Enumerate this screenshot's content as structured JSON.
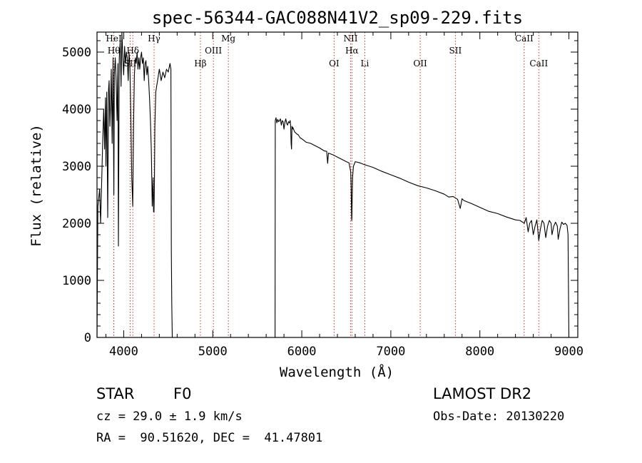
{
  "colors": {
    "spectrum": "#000000",
    "line_marker": "#c0392b",
    "axis": "#000000"
  },
  "chart_data": {
    "type": "line",
    "title": "spec-56344-GAC088N41V2_sp09-229.fits",
    "xlabel": "Wavelength (Å)",
    "ylabel": "Flux (relative)",
    "xlim": [
      3700,
      9100
    ],
    "ylim": [
      0,
      5350
    ],
    "xticks": [
      4000,
      5000,
      6000,
      7000,
      8000,
      9000
    ],
    "yticks": [
      0,
      1000,
      2000,
      3000,
      4000,
      5000
    ],
    "grid": false,
    "series": [
      {
        "x": [
          3700,
          3710,
          3730,
          3740,
          3755,
          3765,
          3775,
          3785,
          3795,
          3800,
          3810,
          3820,
          3830,
          3836,
          3845,
          3855,
          3860,
          3870,
          3880,
          3889,
          3895,
          3905,
          3915,
          3925,
          3935,
          3940,
          3950,
          3960,
          3970,
          3980,
          3990,
          4000,
          4010,
          4020,
          4030,
          4040,
          4050,
          4060,
          4070,
          4080,
          4090,
          4101,
          4110,
          4120,
          4130,
          4140,
          4150,
          4160,
          4170,
          4180,
          4190,
          4200,
          4210,
          4220,
          4230,
          4240,
          4250,
          4260,
          4270,
          4280,
          4290,
          4300,
          4310,
          4320,
          4330,
          4335,
          4340,
          4345,
          4350,
          4360,
          4370,
          4380,
          4390,
          4400,
          4420,
          4440,
          4460,
          4480,
          4500,
          4520,
          4530,
          4535,
          4540,
          4545,
          4550
        ],
        "y": [
          0,
          2300,
          2600,
          2000,
          2900,
          3500,
          4000,
          3300,
          4200,
          3000,
          4300,
          2100,
          4350,
          4500,
          3700,
          4200,
          4700,
          3400,
          4900,
          2500,
          4600,
          4900,
          4500,
          3800,
          4800,
          1600,
          4900,
          5200,
          4400,
          5350,
          4900,
          4600,
          5100,
          4800,
          5000,
          4900,
          4500,
          5000,
          4700,
          3900,
          2800,
          2300,
          3700,
          4600,
          4900,
          4800,
          5000,
          4700,
          4900,
          4700,
          4900,
          5000,
          4800,
          4900,
          4500,
          4800,
          4850,
          4600,
          4750,
          4500,
          4200,
          3800,
          3300,
          2300,
          2800,
          2200,
          2200,
          2700,
          3700,
          4300,
          4400,
          4500,
          4600,
          4700,
          4500,
          4650,
          4550,
          4700,
          4650,
          4800,
          4700,
          1500,
          600,
          0,
          0
        ]
      },
      {
        "x": [
          5690,
          5695,
          5698,
          5700,
          5702,
          5710,
          5720,
          5730,
          5740,
          5750,
          5760,
          5770,
          5780,
          5790,
          5800,
          5810,
          5820,
          5830,
          5840,
          5850,
          5860,
          5870,
          5875,
          5880,
          5885,
          5890,
          5895,
          5900,
          5910,
          5920,
          5940,
          5960,
          5980,
          6000,
          6050,
          6100,
          6150,
          6200,
          6250,
          6280,
          6290,
          6300,
          6350,
          6400,
          6450,
          6500,
          6530,
          6550,
          6555,
          6560,
          6563,
          6566,
          6570,
          6580,
          6600,
          6650,
          6700,
          6800,
          6900,
          7000,
          7100,
          7200,
          7300,
          7400,
          7500,
          7600,
          7650,
          7700,
          7750,
          7780,
          7800,
          7820,
          7850,
          7900,
          8000,
          8100,
          8200,
          8300,
          8400,
          8450,
          8500,
          8520,
          8542,
          8560,
          8580,
          8600,
          8620,
          8640,
          8650,
          8662,
          8680,
          8700,
          8720,
          8740,
          8760,
          8780,
          8800,
          8810,
          8830,
          8850,
          8870,
          8880,
          8900,
          8920,
          8940,
          8960,
          8980,
          8990,
          9000
        ],
        "y": [
          0,
          0,
          0,
          0,
          3800,
          3850,
          3760,
          3820,
          3780,
          3800,
          3830,
          3720,
          3800,
          3780,
          3650,
          3770,
          3830,
          3750,
          3720,
          3780,
          3760,
          3800,
          3700,
          3400,
          3300,
          3700,
          3650,
          3680,
          3640,
          3600,
          3570,
          3550,
          3500,
          3480,
          3420,
          3400,
          3360,
          3320,
          3270,
          3260,
          3050,
          3230,
          3200,
          3160,
          3120,
          3080,
          3060,
          2900,
          2600,
          2050,
          2100,
          2400,
          2800,
          3000,
          3080,
          3060,
          3030,
          2980,
          2910,
          2850,
          2790,
          2720,
          2660,
          2620,
          2570,
          2510,
          2460,
          2470,
          2420,
          2260,
          2430,
          2400,
          2380,
          2350,
          2280,
          2210,
          2170,
          2110,
          2060,
          2050,
          2000,
          2100,
          1850,
          2000,
          2050,
          1800,
          1950,
          2060,
          1900,
          1700,
          1900,
          2050,
          2000,
          1750,
          1950,
          2050,
          2000,
          1800,
          1950,
          2020,
          1950,
          1720,
          1900,
          2020,
          1980,
          2000,
          1960,
          1800,
          0
        ]
      }
    ],
    "line_markers": [
      {
        "wave": 3889,
        "label": "Hθ"
      },
      {
        "wave": 3889,
        "label": "HeI"
      },
      {
        "wave": 4072,
        "label": "SII"
      },
      {
        "wave": 4102,
        "label": "Hδ"
      },
      {
        "wave": 4341,
        "label": "Hγ"
      },
      {
        "wave": 4861,
        "label": "Hβ"
      },
      {
        "wave": 5007,
        "label": "OIII"
      },
      {
        "wave": 5175,
        "label": "Mg"
      },
      {
        "wave": 6363,
        "label": "OI"
      },
      {
        "wave": 6548,
        "label": "NII"
      },
      {
        "wave": 6563,
        "label": "Hα"
      },
      {
        "wave": 6708,
        "label": "Li"
      },
      {
        "wave": 7330,
        "label": "OII"
      },
      {
        "wave": 7725,
        "label": "SII"
      },
      {
        "wave": 8498,
        "label": "CaII"
      },
      {
        "wave": 8662,
        "label": "CaII"
      }
    ]
  },
  "info": {
    "object_class": "STAR",
    "subclass": "F0",
    "survey": "LAMOST DR2",
    "cz": "cz = 29.0 ± 1.9 km/s",
    "obs_date": "Obs-Date: 20130220",
    "radec": "RA =  90.51620, DEC =  41.47801"
  }
}
